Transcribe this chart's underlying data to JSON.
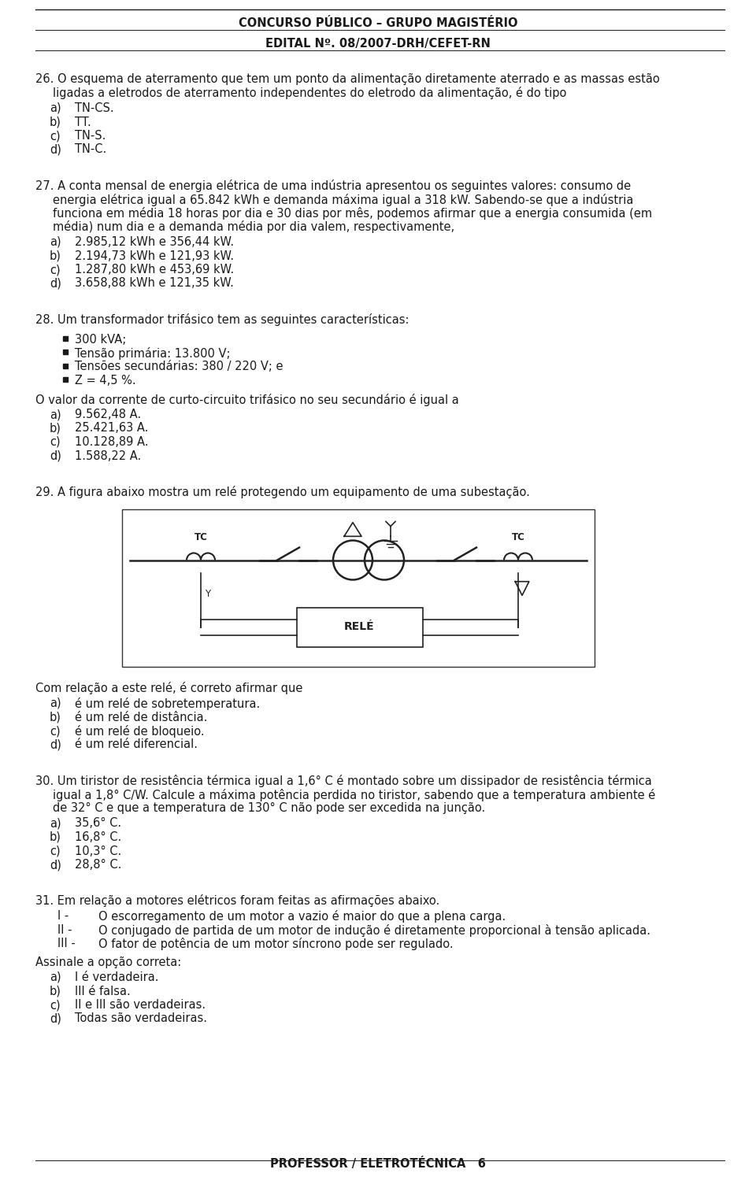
{
  "header_line1": "CONCURSO PÚBLICO – GRUPO MAGISTÉRIO",
  "header_line2": "EDITAL Nº. 08/2007-DRH/CEFET-RN",
  "footer": "PROFESSOR / ELETROTÉCNICA   6",
  "bg_color": "#ffffff",
  "text_color": "#1a1a1a",
  "font_size": 10.5,
  "header_font_size": 10.5,
  "content": [
    {
      "type": "question",
      "number": "26.",
      "text": "O esquema de aterramento que tem um ponto da alimentação diretamente aterrado e as massas estão\nligadas a eletrodos de aterramento independentes do eletrodo da alimentação, é do tipo"
    },
    {
      "type": "options_alpha",
      "items": [
        "a)\tTN-CS.",
        "b)\tTT.",
        "c)\tTN-S.",
        "d)\tTN-C."
      ]
    },
    {
      "type": "question",
      "number": "27.",
      "text": "A conta mensal de energia elétrica de uma indústria apresentou os seguintes valores: consumo de\nenergia elétrica igual a 65.842 kWh e demanda máxima igual a 318 kW. Sabendo-se que a indústria\nfunciona em média 18 horas por dia e 30 dias por mês, podemos afirmar que a energia consumida (em\nmédia) num dia e a demanda média por dia valem, respectivamente,"
    },
    {
      "type": "options_alpha",
      "items": [
        "a)\t2.985,12 kWh e 356,44 kW.",
        "b)\t2.194,73 kWh e 121,93 kW.",
        "c)\t1.287,80 kWh e 453,69 kW.",
        "d)\t3.658,88 kWh e 121,35 kW."
      ]
    },
    {
      "type": "question",
      "number": "28.",
      "text": "Um transformador trifásico tem as seguintes características:"
    },
    {
      "type": "bullets",
      "items": [
        "300 kVA;",
        "Tensão primária: 13.800 V;",
        "Tensões secundárias: 380 / 220 V; e",
        "Z = 4,5 %."
      ]
    },
    {
      "type": "plain",
      "text": "O valor da corrente de curto-circuito trifásico no seu secundário é igual a"
    },
    {
      "type": "options_alpha",
      "items": [
        "a)\t9.562,48 A.",
        "b)\t25.421,63 A.",
        "c)\t10.128,89 A.",
        "d)\t1.588,22 A."
      ]
    },
    {
      "type": "question",
      "number": "29.",
      "text": "A figura abaixo mostra um relé protegendo um equipamento de uma subestação."
    },
    {
      "type": "diagram"
    },
    {
      "type": "plain",
      "text": "Com relação a este relé, é correto afirmar que"
    },
    {
      "type": "options_alpha",
      "items": [
        "a)\té um relé de sobretemperatura.",
        "b)\té um relé de distância.",
        "c)\té um relé de bloqueio.",
        "d)\té um relé diferencial."
      ]
    },
    {
      "type": "question",
      "number": "30.",
      "text": "Um tiristor de resistência térmica igual a 1,6° C é montado sobre um dissipador de resistência térmica\nigual a 1,8° C/W. Calcule a máxima potência perdida no tiristor, sabendo que a temperatura ambiente é\nde 32° C e que a temperatura de 130° C não pode ser excedida na junção."
    },
    {
      "type": "options_alpha",
      "items": [
        "a)\t35,6° C.",
        "b)\t16,8° C.",
        "c)\t10,3° C.",
        "d)\t28,8° C."
      ]
    },
    {
      "type": "question",
      "number": "31.",
      "text": "Em relação a motores elétricos foram feitas as afirmações abaixo."
    },
    {
      "type": "roman_items",
      "items": [
        [
          "I -",
          "O escorregamento de um motor a vazio é maior do que a plena carga."
        ],
        [
          "II -",
          "O conjugado de partida de um motor de indução é diretamente proporcional à tensão aplicada."
        ],
        [
          "III -",
          "O fator de potência de um motor síncrono pode ser regulado."
        ]
      ]
    },
    {
      "type": "plain",
      "text": "Assinale a opção correta:"
    },
    {
      "type": "options_alpha",
      "items": [
        "a)\tI é verdadeira.",
        "b)\tIII é falsa.",
        "c)\tII e III são verdadeiras.",
        "d)\tTodas são verdadeiras."
      ]
    }
  ]
}
